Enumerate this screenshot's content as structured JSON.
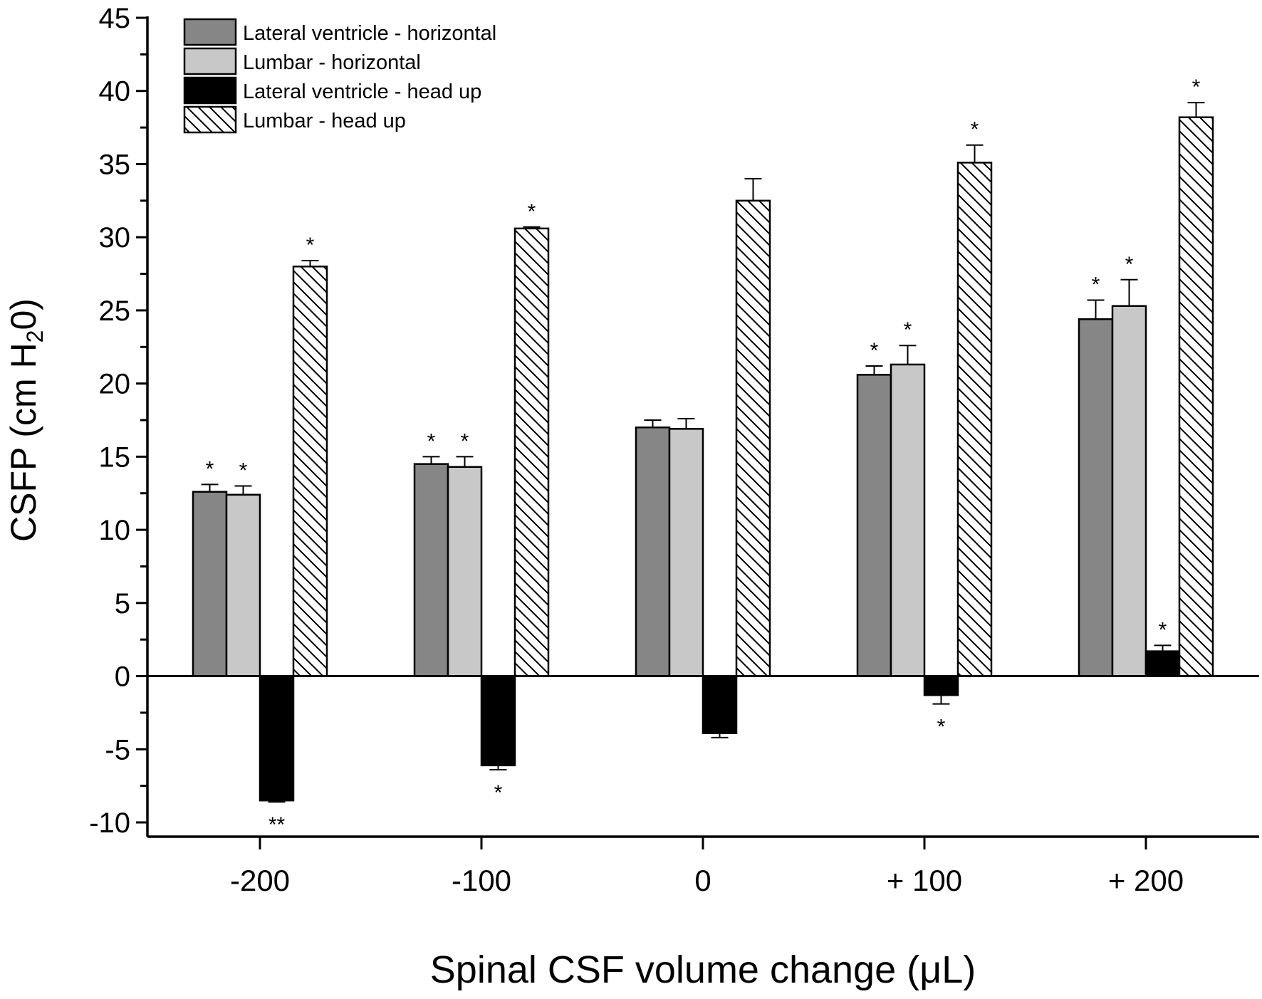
{
  "chart_data": {
    "type": "bar",
    "title": "",
    "xlabel": "Spinal CSF volume change (μL)",
    "ylabel": "CSFP (cm H",
    "ylabel_sub": "2",
    "ylabel_end": "0)",
    "ylim": [
      -10,
      45
    ],
    "yticks": [
      -10,
      -5,
      0,
      5,
      10,
      15,
      20,
      25,
      30,
      35,
      40,
      45
    ],
    "ytick_labels": [
      "-10",
      "-5",
      "0",
      "5",
      "10",
      "15",
      "20",
      "25",
      "30",
      "35",
      "40",
      "45"
    ],
    "categories": [
      "-200",
      "-100",
      "0",
      "+ 100",
      "+ 200"
    ],
    "legend_position": "top-left",
    "series": [
      {
        "name": "Lateral ventricle - horizontal",
        "color": "#868686",
        "pattern": "solid",
        "values": [
          12.6,
          14.5,
          17.0,
          20.6,
          24.4
        ],
        "errors": [
          0.5,
          0.5,
          0.5,
          0.6,
          1.3
        ],
        "significance": [
          "*",
          "*",
          "",
          "*",
          "*"
        ]
      },
      {
        "name": "Lumbar - horizontal",
        "color": "#c8c8c8",
        "pattern": "solid",
        "values": [
          12.4,
          14.3,
          16.9,
          21.3,
          25.3
        ],
        "errors": [
          0.6,
          0.7,
          0.7,
          1.3,
          1.8
        ],
        "significance": [
          "*",
          "*",
          "",
          "*",
          "*"
        ]
      },
      {
        "name": "Lateral ventricle - head up",
        "color": "#000000",
        "pattern": "solid",
        "values": [
          -8.5,
          -6.1,
          -3.9,
          -1.3,
          1.7
        ],
        "errors": [
          0.1,
          0.3,
          0.3,
          0.6,
          0.4
        ],
        "significance": [
          "**",
          "*",
          "",
          "*",
          "*"
        ]
      },
      {
        "name": "Lumbar - head up",
        "color": "#ffffff",
        "pattern": "hatch",
        "values": [
          28.0,
          30.6,
          32.5,
          35.1,
          38.2
        ],
        "errors": [
          0.4,
          0.1,
          1.5,
          1.2,
          1.0
        ],
        "significance": [
          "*",
          "*",
          "",
          "*",
          "*"
        ]
      }
    ]
  }
}
